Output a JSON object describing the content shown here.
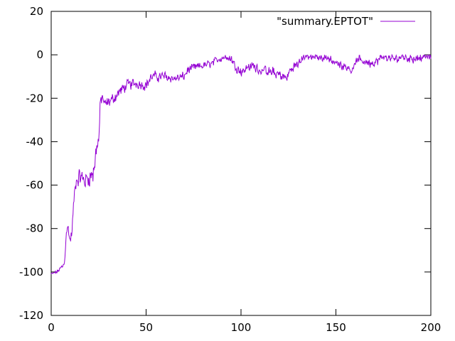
{
  "chart_data": {
    "type": "line",
    "title": "",
    "xlabel": "",
    "ylabel": "",
    "xlim": [
      0,
      200
    ],
    "ylim": [
      -120,
      20
    ],
    "x_ticks": [
      0,
      50,
      100,
      150,
      200
    ],
    "y_ticks": [
      -120,
      -100,
      -80,
      -60,
      -40,
      -20,
      0,
      20
    ],
    "grid": false,
    "legend_position": "top-right",
    "series": [
      {
        "name": "\"summary.EPTOT\"",
        "color": "#9400d3",
        "x_start": 0,
        "x_step": 0.25,
        "keyframes": [
          [
            0,
            -101
          ],
          [
            3,
            -100
          ],
          [
            6,
            -97.5
          ],
          [
            7,
            -96
          ],
          [
            8,
            -81
          ],
          [
            9,
            -80
          ],
          [
            10,
            -86
          ],
          [
            11,
            -81
          ],
          [
            12,
            -67
          ],
          [
            13,
            -58
          ],
          [
            15,
            -56
          ],
          [
            18,
            -58
          ],
          [
            20,
            -56
          ],
          [
            22,
            -55
          ],
          [
            23,
            -50
          ],
          [
            24,
            -41
          ],
          [
            25,
            -40
          ],
          [
            26,
            -22
          ],
          [
            27,
            -19
          ],
          [
            28,
            -23
          ],
          [
            30,
            -22
          ],
          [
            33,
            -20
          ],
          [
            36,
            -17
          ],
          [
            40,
            -14
          ],
          [
            45,
            -13
          ],
          [
            50,
            -14
          ],
          [
            53,
            -10
          ],
          [
            57,
            -10
          ],
          [
            60,
            -10
          ],
          [
            65,
            -11
          ],
          [
            70,
            -10
          ],
          [
            72,
            -7
          ],
          [
            75,
            -6
          ],
          [
            80,
            -5
          ],
          [
            85,
            -4
          ],
          [
            88,
            -2
          ],
          [
            91,
            -1
          ],
          [
            95,
            -2
          ],
          [
            97,
            -5
          ],
          [
            100,
            -8
          ],
          [
            103,
            -6
          ],
          [
            106,
            -5
          ],
          [
            110,
            -7
          ],
          [
            115,
            -8
          ],
          [
            120,
            -9
          ],
          [
            124,
            -11
          ],
          [
            126,
            -7
          ],
          [
            130,
            -4
          ],
          [
            133,
            -1
          ],
          [
            137,
            -1
          ],
          [
            142,
            -1
          ],
          [
            145,
            -1
          ],
          [
            147,
            -2
          ],
          [
            150,
            -4
          ],
          [
            155,
            -5
          ],
          [
            158,
            -7
          ],
          [
            162,
            -2
          ],
          [
            165,
            -3
          ],
          [
            170,
            -4
          ],
          [
            175,
            -1
          ],
          [
            180,
            -2
          ],
          [
            185,
            -1
          ],
          [
            190,
            -2
          ],
          [
            195,
            -1
          ],
          [
            200,
            -1
          ]
        ],
        "noise_amplitude": [
          [
            0,
            0.6
          ],
          [
            7,
            1.5
          ],
          [
            12,
            4
          ],
          [
            25,
            5
          ],
          [
            28,
            2.8
          ],
          [
            50,
            2.5
          ],
          [
            90,
            1.8
          ],
          [
            115,
            2.5
          ],
          [
            125,
            2.2
          ],
          [
            140,
            1.8
          ],
          [
            160,
            2.2
          ],
          [
            200,
            2.0
          ]
        ]
      }
    ]
  }
}
